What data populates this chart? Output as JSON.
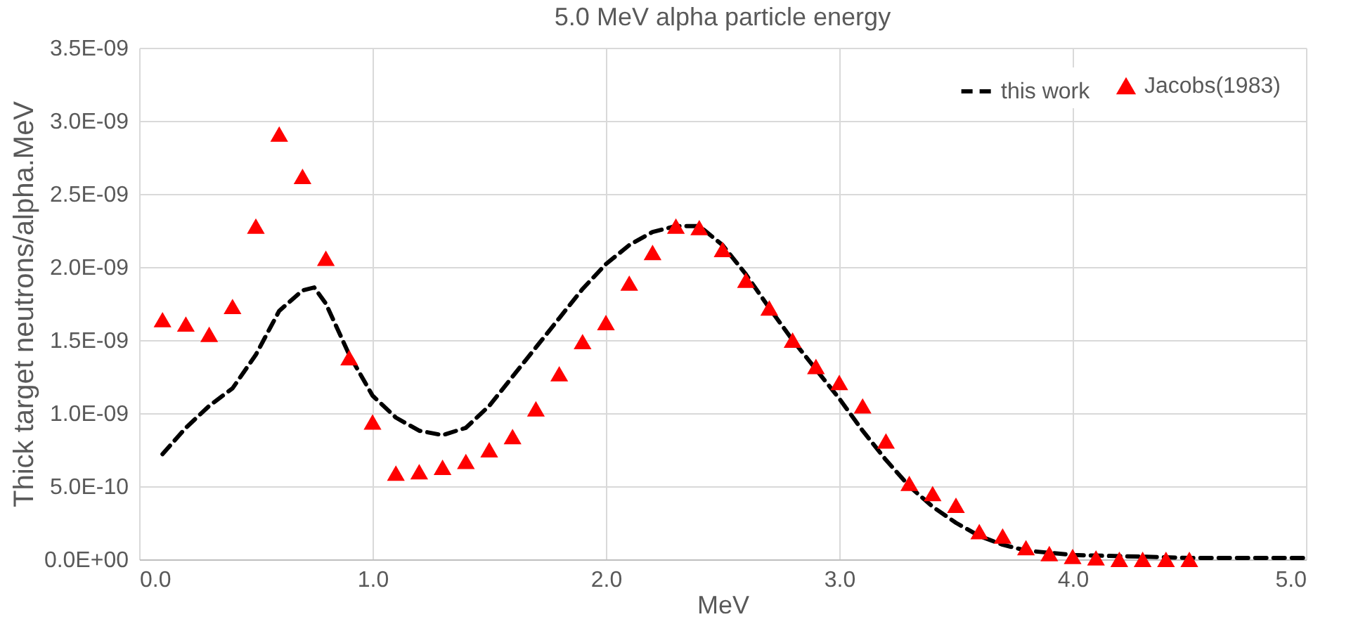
{
  "chart_data": {
    "type": "line",
    "title": "5.0 MeV alpha particle energy",
    "xlabel": "MeV",
    "ylabel": "Thick target neutrons/alpha.MeV",
    "xlim": [
      0,
      5
    ],
    "xticks": [
      {
        "value": 0,
        "label": "0.0"
      },
      {
        "value": 1,
        "label": "1.0"
      },
      {
        "value": 2,
        "label": "2.0"
      },
      {
        "value": 3,
        "label": "3.0"
      },
      {
        "value": 4,
        "label": "4.0"
      },
      {
        "value": 5,
        "label": "5.0"
      }
    ],
    "ylim": [
      0,
      3.5e-09
    ],
    "yticks": [
      {
        "value": 0,
        "label": "0.0E+00"
      },
      {
        "value": 5e-10,
        "label": "5.0E-10"
      },
      {
        "value": 1e-09,
        "label": "1.0E-09"
      },
      {
        "value": 1.5e-09,
        "label": "1.5E-09"
      },
      {
        "value": 2e-09,
        "label": "2.0E-09"
      },
      {
        "value": 2.5e-09,
        "label": "2.5E-09"
      },
      {
        "value": 3e-09,
        "label": "3.0E-09"
      },
      {
        "value": 3.5e-09,
        "label": "3.5E-09"
      }
    ],
    "grid": true,
    "legend": "top right",
    "series": [
      {
        "name": "this work",
        "type": "line",
        "color": "#000000",
        "line_style": "dashed",
        "marker": "none",
        "x": [
          0.1,
          0.2,
          0.3,
          0.4,
          0.5,
          0.6,
          0.7,
          0.75,
          0.8,
          0.9,
          1.0,
          1.1,
          1.2,
          1.3,
          1.4,
          1.5,
          1.6,
          1.7,
          1.8,
          1.9,
          2.0,
          2.1,
          2.2,
          2.3,
          2.4,
          2.5,
          2.6,
          2.7,
          2.8,
          2.9,
          3.0,
          3.1,
          3.2,
          3.3,
          3.4,
          3.5,
          3.6,
          3.7,
          3.8,
          4.0,
          4.5,
          5.0
        ],
        "values": [
          7.2e-10,
          9e-10,
          1.05e-09,
          1.17e-09,
          1.4e-09,
          1.7e-09,
          1.84e-09,
          1.86e-09,
          1.75e-09,
          1.4e-09,
          1.12e-09,
          9.7e-10,
          8.8e-10,
          8.5e-10,
          9e-10,
          1.05e-09,
          1.25e-09,
          1.45e-09,
          1.65e-09,
          1.85e-09,
          2.02e-09,
          2.15e-09,
          2.24e-09,
          2.28e-09,
          2.28e-09,
          2.15e-09,
          1.95e-09,
          1.72e-09,
          1.5e-09,
          1.3e-09,
          1.1e-09,
          8.8e-10,
          6.8e-10,
          5e-10,
          3.6e-10,
          2.5e-10,
          1.6e-10,
          1e-10,
          6e-11,
          3e-11,
          1e-11,
          1e-11
        ]
      },
      {
        "name": "Jacobs(1983)",
        "type": "scatter",
        "color": "#ff0000",
        "marker": "triangle",
        "x": [
          0.1,
          0.2,
          0.3,
          0.4,
          0.5,
          0.6,
          0.7,
          0.8,
          0.9,
          1.0,
          1.1,
          1.2,
          1.3,
          1.4,
          1.5,
          1.6,
          1.7,
          1.8,
          1.9,
          2.0,
          2.1,
          2.2,
          2.3,
          2.4,
          2.5,
          2.6,
          2.7,
          2.8,
          2.9,
          3.0,
          3.1,
          3.2,
          3.3,
          3.4,
          3.5,
          3.6,
          3.7,
          3.8,
          3.9,
          4.0,
          4.1,
          4.2,
          4.3,
          4.4,
          4.5
        ],
        "values": [
          1.64e-09,
          1.61e-09,
          1.54e-09,
          1.73e-09,
          2.28e-09,
          2.91e-09,
          2.62e-09,
          2.06e-09,
          1.38e-09,
          9.4e-10,
          5.9e-10,
          6e-10,
          6.3e-10,
          6.7e-10,
          7.5e-10,
          8.4e-10,
          1.03e-09,
          1.27e-09,
          1.49e-09,
          1.62e-09,
          1.89e-09,
          2.1e-09,
          2.28e-09,
          2.27e-09,
          2.12e-09,
          1.91e-09,
          1.72e-09,
          1.5e-09,
          1.32e-09,
          1.21e-09,
          1.05e-09,
          8.1e-10,
          5.2e-10,
          4.5e-10,
          3.7e-10,
          1.9e-10,
          1.6e-10,
          8e-11,
          4e-11,
          2e-11,
          1e-11,
          0,
          0,
          0,
          0
        ]
      }
    ]
  }
}
